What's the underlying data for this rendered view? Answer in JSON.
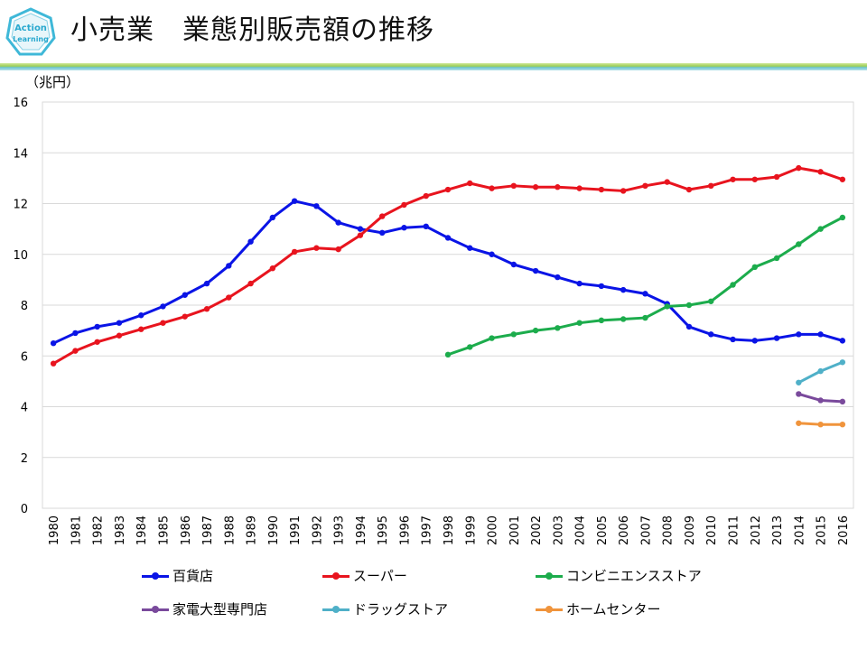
{
  "header": {
    "title": "小売業　業態別販売額の推移",
    "logo_text_top": "Action",
    "logo_text_bottom": "Learning"
  },
  "colors": {
    "department": "#0a14e6",
    "super": "#e8141e",
    "convenience": "#1cac4c",
    "electronics": "#7a4a9c",
    "drugstore": "#4fb0c8",
    "homecenter": "#f0943c",
    "grid": "#d9d9d9"
  },
  "chart_data": {
    "type": "line",
    "title": "小売業　業態別販売額の推移",
    "ylabel": "（兆円）",
    "xlabel": "",
    "ylim": [
      0,
      16
    ],
    "yticks": [
      0,
      2,
      4,
      6,
      8,
      10,
      12,
      14,
      16
    ],
    "grid": true,
    "legend_position": "bottom",
    "categories": [
      "1980",
      "1981",
      "1982",
      "1983",
      "1984",
      "1985",
      "1986",
      "1987",
      "1988",
      "1989",
      "1990",
      "1991",
      "1992",
      "1993",
      "1994",
      "1995",
      "1996",
      "1997",
      "1998",
      "1999",
      "2000",
      "2001",
      "2002",
      "2003",
      "2004",
      "2005",
      "2006",
      "2007",
      "2008",
      "2009",
      "2010",
      "2011",
      "2012",
      "2013",
      "2014",
      "2015",
      "2016"
    ],
    "series": [
      {
        "name": "百貨店",
        "color_key": "department",
        "values": [
          6.5,
          6.9,
          7.15,
          7.3,
          7.6,
          7.95,
          8.4,
          8.85,
          9.55,
          10.5,
          11.45,
          12.1,
          11.9,
          11.25,
          11.0,
          10.85,
          11.05,
          11.1,
          10.65,
          10.25,
          10.0,
          9.6,
          9.35,
          9.1,
          8.85,
          8.75,
          8.6,
          8.45,
          8.05,
          7.15,
          6.85,
          6.65,
          6.6,
          6.7,
          6.85,
          6.85,
          6.6
        ]
      },
      {
        "name": "スーパー",
        "color_key": "super",
        "values": [
          5.7,
          6.2,
          6.55,
          6.8,
          7.05,
          7.3,
          7.55,
          7.85,
          8.3,
          8.85,
          9.45,
          10.1,
          10.25,
          10.2,
          10.75,
          11.5,
          11.95,
          12.3,
          12.55,
          12.8,
          12.6,
          12.7,
          12.65,
          12.65,
          12.6,
          12.55,
          12.5,
          12.7,
          12.85,
          12.55,
          12.7,
          12.95,
          12.95,
          13.05,
          13.4,
          13.25,
          12.95
        ]
      },
      {
        "name": "コンビニエンスストア",
        "color_key": "convenience",
        "values": [
          null,
          null,
          null,
          null,
          null,
          null,
          null,
          null,
          null,
          null,
          null,
          null,
          null,
          null,
          null,
          null,
          null,
          null,
          6.05,
          6.35,
          6.7,
          6.85,
          7.0,
          7.1,
          7.3,
          7.4,
          7.45,
          7.5,
          7.95,
          8.0,
          8.15,
          8.8,
          9.5,
          9.85,
          10.4,
          11.0,
          11.45
        ]
      },
      {
        "name": "家電大型専門店",
        "color_key": "electronics",
        "values": [
          null,
          null,
          null,
          null,
          null,
          null,
          null,
          null,
          null,
          null,
          null,
          null,
          null,
          null,
          null,
          null,
          null,
          null,
          null,
          null,
          null,
          null,
          null,
          null,
          null,
          null,
          null,
          null,
          null,
          null,
          null,
          null,
          null,
          null,
          4.5,
          4.25,
          4.2
        ]
      },
      {
        "name": "ドラッグストア",
        "color_key": "drugstore",
        "values": [
          null,
          null,
          null,
          null,
          null,
          null,
          null,
          null,
          null,
          null,
          null,
          null,
          null,
          null,
          null,
          null,
          null,
          null,
          null,
          null,
          null,
          null,
          null,
          null,
          null,
          null,
          null,
          null,
          null,
          null,
          null,
          null,
          null,
          null,
          4.95,
          5.4,
          5.75
        ]
      },
      {
        "name": "ホームセンター",
        "color_key": "homecenter",
        "values": [
          null,
          null,
          null,
          null,
          null,
          null,
          null,
          null,
          null,
          null,
          null,
          null,
          null,
          null,
          null,
          null,
          null,
          null,
          null,
          null,
          null,
          null,
          null,
          null,
          null,
          null,
          null,
          null,
          null,
          null,
          null,
          null,
          null,
          null,
          3.35,
          3.3,
          3.3
        ]
      }
    ]
  }
}
